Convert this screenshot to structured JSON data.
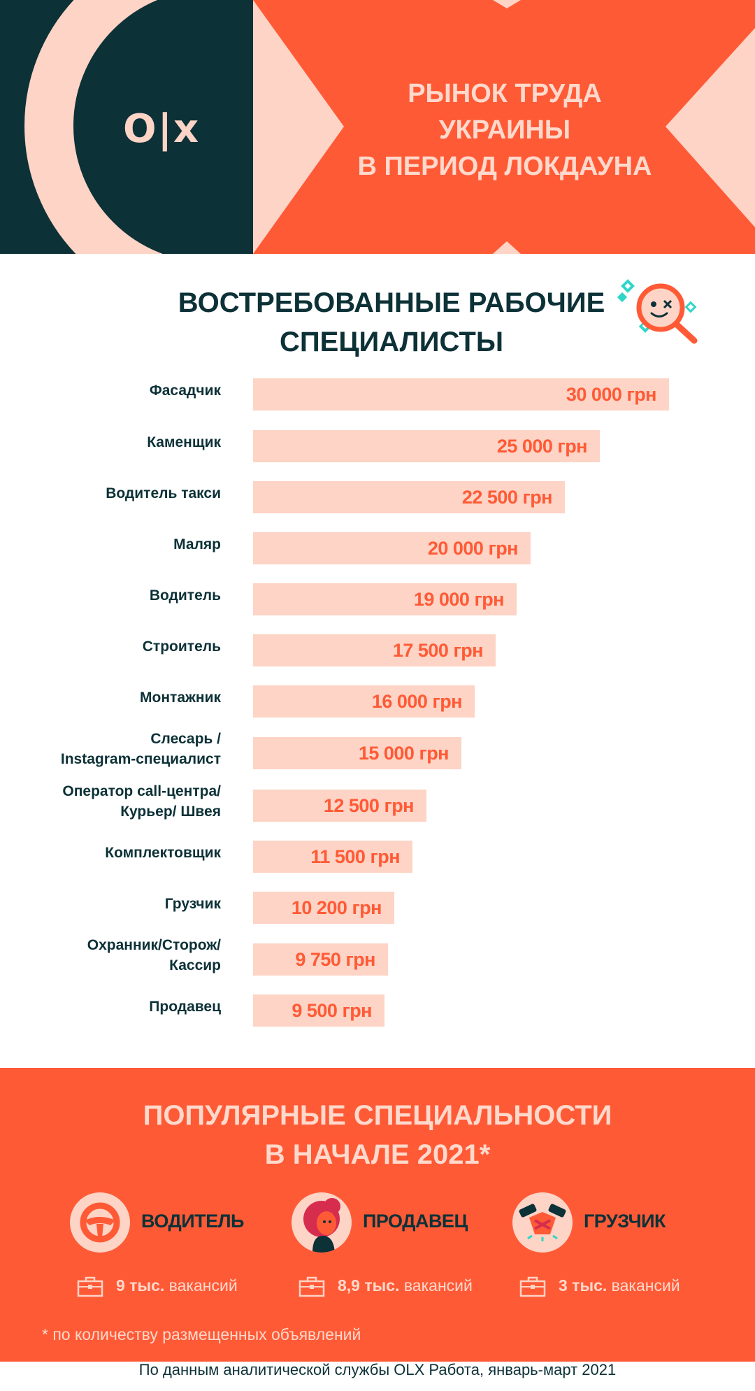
{
  "header": {
    "logo": "O|x",
    "title_lines": [
      "РЫНОК ТРУДА",
      "УКРАИНЫ",
      "В ПЕРИОД ЛОКДАУНА"
    ]
  },
  "chart_data": {
    "type": "bar",
    "orientation": "horizontal",
    "title_lines": [
      "ВОСТРЕБОВАННЫЕ РАБОЧИЕ",
      "СПЕЦИАЛИСТЫ"
    ],
    "categories": [
      [
        "Фасадчик"
      ],
      [
        "Каменщик"
      ],
      [
        "Водитель такси"
      ],
      [
        "Маляр"
      ],
      [
        "Водитель"
      ],
      [
        "Строитель"
      ],
      [
        "Монтажник"
      ],
      [
        "Слесарь /",
        "Instagram-специалист"
      ],
      [
        "Оператор call-центра/",
        "Курьер/ Швея"
      ],
      [
        "Комплектовщик"
      ],
      [
        "Грузчик"
      ],
      [
        "Охранник/Сторож/",
        "Кассир"
      ],
      [
        "Продавец"
      ]
    ],
    "values": [
      30000,
      25000,
      22500,
      20000,
      19000,
      17500,
      16000,
      15000,
      12500,
      11500,
      10200,
      9750,
      9500
    ],
    "value_labels": [
      "30 000 грн",
      "25 000 грн",
      "22 500 грн",
      "20 000 грн",
      "19 000 грн",
      "17 500 грн",
      "16 000 грн",
      "15 000 грн",
      "12 500 грн",
      "11 500 грн",
      "10 200 грн",
      "9 750 грн",
      "9 500 грн"
    ],
    "bar_color": "#fdd4c5",
    "label_color": "#ff5a36"
  },
  "popular": {
    "title_lines": [
      "ПОПУЛЯРНЫЕ СПЕЦИАЛЬНОСТИ",
      "В НАЧАЛЕ 2021*"
    ],
    "items": [
      {
        "name": "ВОДИТЕЛЬ",
        "icon": "steering-wheel-icon",
        "count": "9 тыс.",
        "unit": " вакансий"
      },
      {
        "name": "ПРОДАВЕЦ",
        "icon": "person-icon",
        "count": "8,9 тыс.",
        "unit": " вакансий"
      },
      {
        "name": "ГРУЗЧИК",
        "icon": "handshake-icon",
        "count": "3 тыс.",
        "unit": " вакансий"
      }
    ],
    "footnote": "* по количеству размещенных объявлений"
  },
  "source": "По данным аналитической службы OLX Работа, январь-март 2021",
  "colors": {
    "orange": "#ff5a36",
    "dark_teal": "#0c3137",
    "peach": "#fdd4c5",
    "turquoise": "#2fd6c8"
  }
}
